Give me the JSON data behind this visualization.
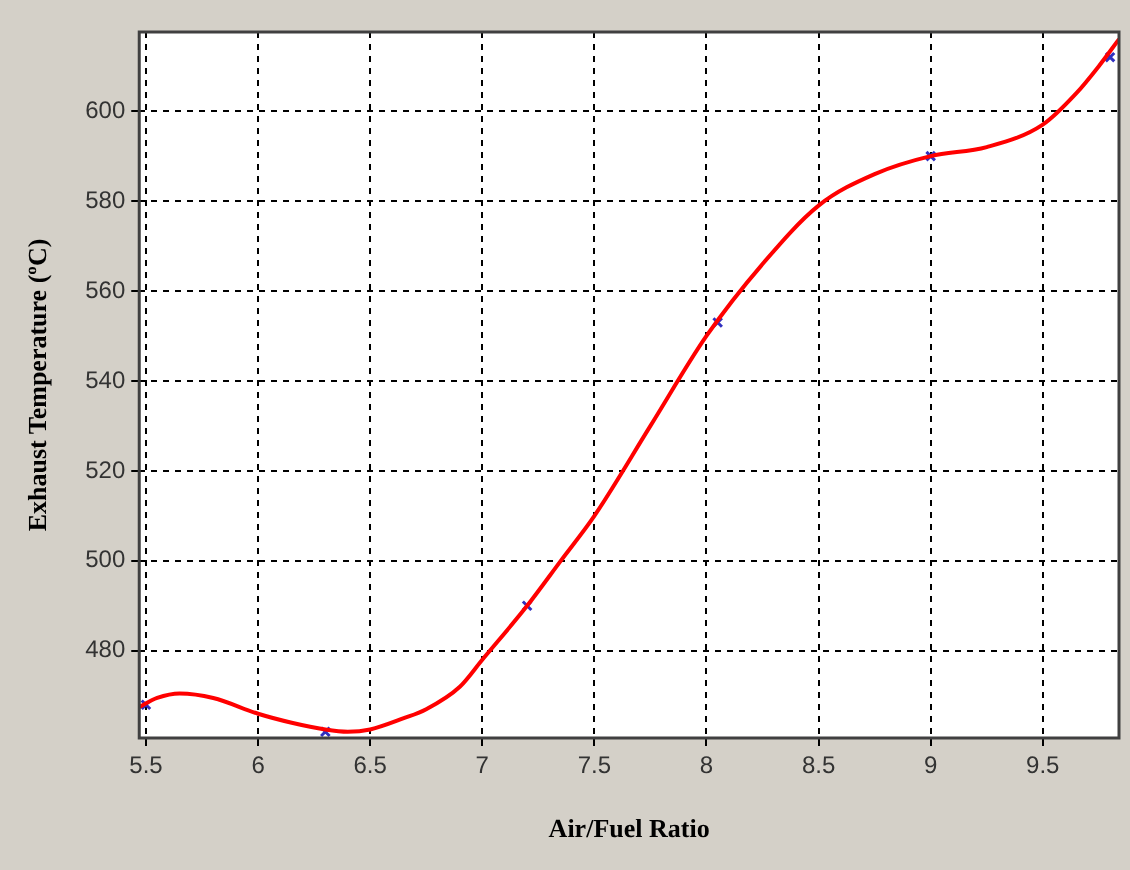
{
  "chart_data": {
    "type": "line",
    "xlabel": "Air/Fuel Ratio",
    "ylabel": "Exhaust Temperature (ºC)",
    "xlim": [
      5.47,
      9.84
    ],
    "xticks": [
      5.5,
      6,
      6.5,
      7,
      7.5,
      8,
      8.5,
      9,
      9.5
    ],
    "ylim": [
      460.6,
      617.6
    ],
    "yticks": [
      480,
      500,
      520,
      540,
      560,
      580,
      600
    ],
    "grid": true,
    "series": [
      {
        "color": "#ff0000",
        "marker": "none",
        "x": [
          5.47,
          5.55,
          5.65,
          5.8,
          6.0,
          6.15,
          6.3,
          6.4,
          6.5,
          6.65,
          6.75,
          6.9,
          7.0,
          7.2,
          7.35,
          7.5,
          7.75,
          8.0,
          8.25,
          8.5,
          8.75,
          9.0,
          9.25,
          9.5,
          9.65,
          9.75,
          9.84
        ],
        "values": [
          467.5,
          469.5,
          470.5,
          469.5,
          466,
          464,
          462.5,
          462,
          462.5,
          465,
          467,
          472,
          478,
          490,
          500,
          510,
          530,
          550,
          566,
          579,
          586,
          590,
          592,
          597,
          604,
          610,
          616
        ]
      },
      {
        "type": "scatter",
        "color": "#3030c0",
        "marker": "cross",
        "x": [
          5.5,
          6.3,
          7.2,
          8.05,
          9.0,
          9.8
        ],
        "values": [
          468,
          462,
          490,
          553,
          590,
          612
        ]
      }
    ]
  }
}
